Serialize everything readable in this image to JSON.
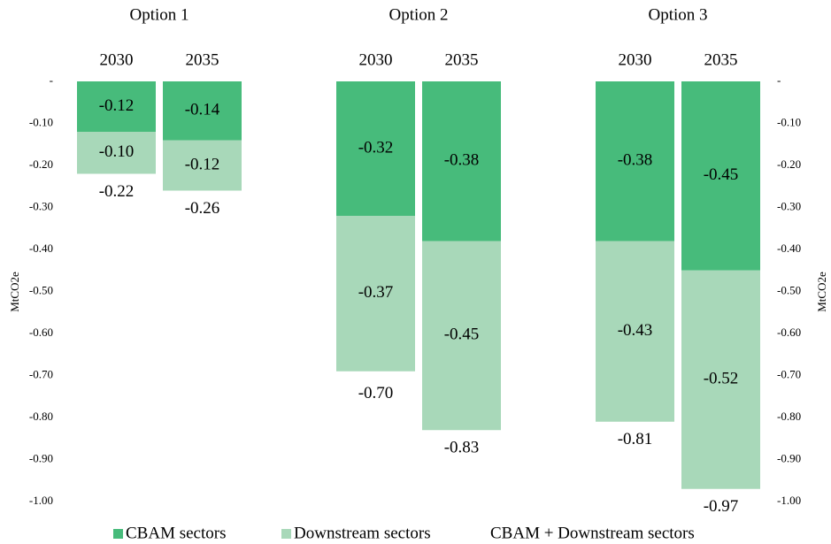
{
  "chart_data": {
    "type": "stacked_bar",
    "groups": [
      "Option 1",
      "Option 2",
      "Option 3"
    ],
    "categories": [
      "2030",
      "2035",
      "2030",
      "2035",
      "2030",
      "2035"
    ],
    "series": [
      {
        "name": "CBAM sectors",
        "color": "#47bb7b",
        "values": [
          -0.12,
          -0.14,
          -0.32,
          -0.38,
          -0.38,
          -0.45
        ],
        "value_labels": [
          "-0.12",
          "-0.14",
          "-0.32",
          "-0.38",
          "-0.38",
          "-0.45"
        ]
      },
      {
        "name": "Downstream sectors",
        "color": "#a8d8b9",
        "values": [
          -0.1,
          -0.12,
          -0.37,
          -0.45,
          -0.43,
          -0.52
        ],
        "value_labels": [
          "-0.10",
          "-0.12",
          "-0.37",
          "-0.45",
          "-0.43",
          "-0.52"
        ]
      },
      {
        "name": "CBAM + Downstream sectors",
        "values": [
          -0.22,
          -0.26,
          -0.7,
          -0.83,
          -0.81,
          -0.97
        ],
        "value_labels": [
          "-0.22",
          "-0.26",
          "-0.70",
          "-0.83",
          "-0.81",
          "-0.97"
        ]
      }
    ],
    "ylabel": "MtCO2e",
    "y2label": "MtCO2e",
    "ylim": [
      0,
      -1
    ],
    "yticks": [
      {
        "value": 0,
        "label": "-"
      },
      {
        "value": -0.1,
        "label": "-0.10"
      },
      {
        "value": -0.2,
        "label": "-0.20"
      },
      {
        "value": -0.3,
        "label": "-0.30"
      },
      {
        "value": -0.4,
        "label": "-0.40"
      },
      {
        "value": -0.5,
        "label": "-0.50"
      },
      {
        "value": -0.6,
        "label": "-0.60"
      },
      {
        "value": -0.7,
        "label": "-0.70"
      },
      {
        "value": -0.8,
        "label": "-0.80"
      },
      {
        "value": -0.9,
        "label": "-0.90"
      },
      {
        "value": -1,
        "label": "-1.00"
      }
    ],
    "y2ticks": [
      {
        "value": 0,
        "label": "-"
      },
      {
        "value": -0.1,
        "label": "-0.10"
      },
      {
        "value": -0.2,
        "label": "-0.20"
      },
      {
        "value": -0.3,
        "label": "-0.30"
      },
      {
        "value": -0.4,
        "label": "-0.40"
      },
      {
        "value": -0.5,
        "label": "-0.50"
      },
      {
        "value": -0.6,
        "label": "-0.60"
      },
      {
        "value": -0.7,
        "label": "-0.70"
      },
      {
        "value": -0.8,
        "label": "-0.80"
      },
      {
        "value": -0.9,
        "label": "-0.90"
      },
      {
        "value": -1,
        "label": "-1.00"
      }
    ],
    "legend": "bottom"
  }
}
